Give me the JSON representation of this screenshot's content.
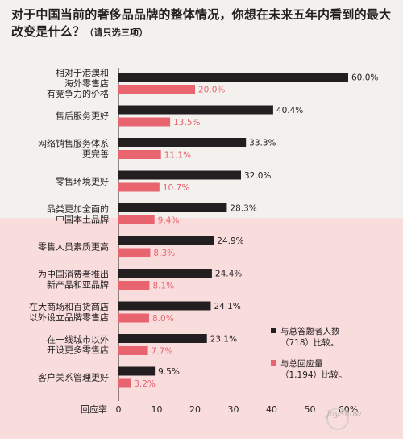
{
  "title": {
    "text": "对于中国当前的奢侈品品牌的整体情况，你想在未来五年内看到的最大改变是什么？",
    "note": "（请只选三项）"
  },
  "chart_data": {
    "type": "bar",
    "orientation": "horizontal",
    "categories": [
      [
        "相对于港澳和",
        "海外零售店",
        "有竞争力的价格"
      ],
      [
        "售后服务更好"
      ],
      [
        "网络销售服务体系",
        "更完善"
      ],
      [
        "零售环境更好"
      ],
      [
        "品类更加全面的",
        "中国本土品牌"
      ],
      [
        "零售人员素质更高"
      ],
      [
        "为中国消费者推出",
        "新产品和亚品牌"
      ],
      [
        "在大商场和百货商店",
        "以外设立品牌零售店"
      ],
      [
        "在一线城市以外",
        "开设更多零售店"
      ],
      [
        "客户关系管理更好"
      ]
    ],
    "series": [
      {
        "name": "与总答题者人数（718）比较。",
        "color": "#231f20",
        "values": [
          60.0,
          40.4,
          33.3,
          32.0,
          28.3,
          24.9,
          24.4,
          24.1,
          23.1,
          9.5
        ],
        "labels": [
          "60.0%",
          "40.4%",
          "33.3%",
          "32.0%",
          "28.3%",
          "24.9%",
          "24.4%",
          "24.1%",
          "23.1%",
          "9.5%"
        ]
      },
      {
        "name": "与总回应量（1,194）比较。",
        "color": "#e8646f",
        "values": [
          20.0,
          13.5,
          11.1,
          10.7,
          9.4,
          8.3,
          8.1,
          8.0,
          7.7,
          3.2
        ],
        "labels": [
          "20.0%",
          "13.5%",
          "11.1%",
          "10.7%",
          "9.4%",
          "8.3%",
          "8.1%",
          "8.0%",
          "7.7%",
          "3.2%"
        ]
      }
    ],
    "xlabel": "回应率",
    "xlim": [
      0,
      60
    ],
    "xticks": [
      0,
      10,
      20,
      30,
      40,
      50,
      60
    ],
    "xtick_labels": [
      "0",
      "10",
      "20",
      "30",
      "40",
      "50",
      "60%"
    ],
    "legend": {
      "placement": "bottom-right",
      "entries": [
        [
          "与总答题者人数",
          "（718）比较。"
        ],
        [
          "与总回应量",
          "（1,194）比较。"
        ]
      ]
    },
    "grid": false
  },
  "watermark": "JoyShow"
}
